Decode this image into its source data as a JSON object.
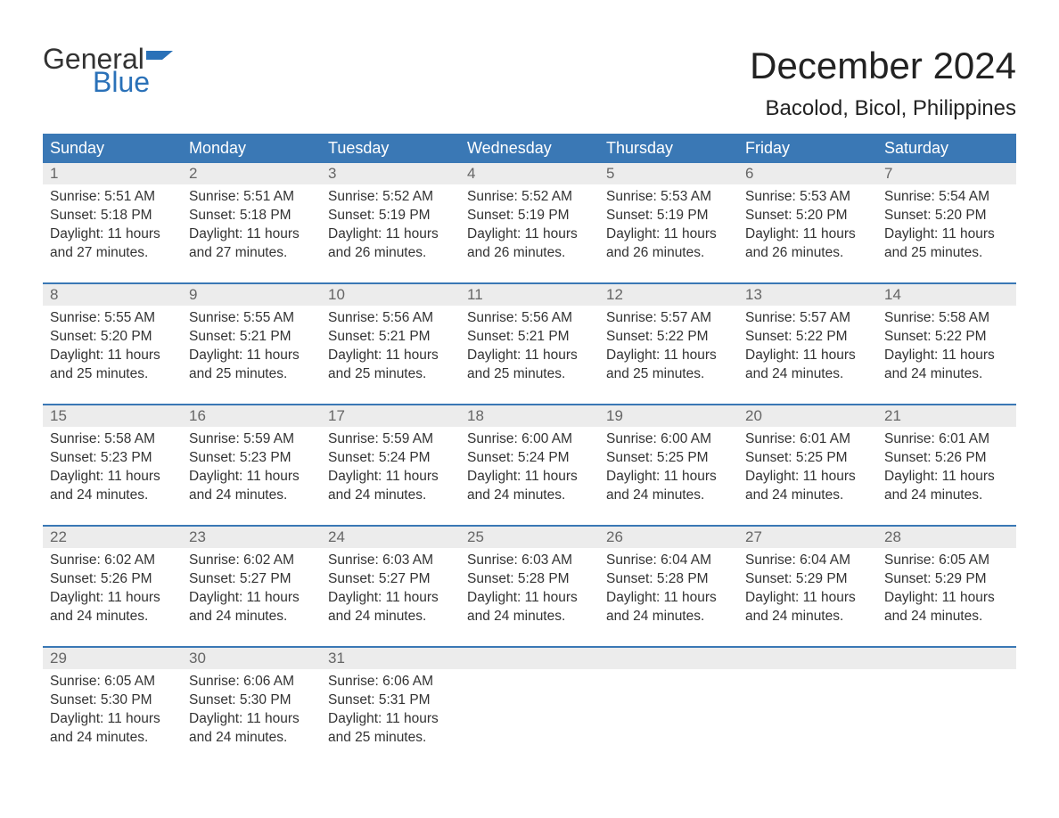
{
  "logo": {
    "text1": "General",
    "text2": "Blue"
  },
  "title": "December 2024",
  "location": "Bacolod, Bicol, Philippines",
  "colors": {
    "header_bg": "#3a78b5",
    "header_text": "#ffffff",
    "daynum_bg": "#ececec",
    "daynum_text": "#666666",
    "body_text": "#333333",
    "accent": "#2a71b8"
  },
  "dayNames": [
    "Sunday",
    "Monday",
    "Tuesday",
    "Wednesday",
    "Thursday",
    "Friday",
    "Saturday"
  ],
  "weeks": [
    [
      {
        "n": "1",
        "sr": "Sunrise: 5:51 AM",
        "ss": "Sunset: 5:18 PM",
        "d1": "Daylight: 11 hours",
        "d2": "and 27 minutes."
      },
      {
        "n": "2",
        "sr": "Sunrise: 5:51 AM",
        "ss": "Sunset: 5:18 PM",
        "d1": "Daylight: 11 hours",
        "d2": "and 27 minutes."
      },
      {
        "n": "3",
        "sr": "Sunrise: 5:52 AM",
        "ss": "Sunset: 5:19 PM",
        "d1": "Daylight: 11 hours",
        "d2": "and 26 minutes."
      },
      {
        "n": "4",
        "sr": "Sunrise: 5:52 AM",
        "ss": "Sunset: 5:19 PM",
        "d1": "Daylight: 11 hours",
        "d2": "and 26 minutes."
      },
      {
        "n": "5",
        "sr": "Sunrise: 5:53 AM",
        "ss": "Sunset: 5:19 PM",
        "d1": "Daylight: 11 hours",
        "d2": "and 26 minutes."
      },
      {
        "n": "6",
        "sr": "Sunrise: 5:53 AM",
        "ss": "Sunset: 5:20 PM",
        "d1": "Daylight: 11 hours",
        "d2": "and 26 minutes."
      },
      {
        "n": "7",
        "sr": "Sunrise: 5:54 AM",
        "ss": "Sunset: 5:20 PM",
        "d1": "Daylight: 11 hours",
        "d2": "and 25 minutes."
      }
    ],
    [
      {
        "n": "8",
        "sr": "Sunrise: 5:55 AM",
        "ss": "Sunset: 5:20 PM",
        "d1": "Daylight: 11 hours",
        "d2": "and 25 minutes."
      },
      {
        "n": "9",
        "sr": "Sunrise: 5:55 AM",
        "ss": "Sunset: 5:21 PM",
        "d1": "Daylight: 11 hours",
        "d2": "and 25 minutes."
      },
      {
        "n": "10",
        "sr": "Sunrise: 5:56 AM",
        "ss": "Sunset: 5:21 PM",
        "d1": "Daylight: 11 hours",
        "d2": "and 25 minutes."
      },
      {
        "n": "11",
        "sr": "Sunrise: 5:56 AM",
        "ss": "Sunset: 5:21 PM",
        "d1": "Daylight: 11 hours",
        "d2": "and 25 minutes."
      },
      {
        "n": "12",
        "sr": "Sunrise: 5:57 AM",
        "ss": "Sunset: 5:22 PM",
        "d1": "Daylight: 11 hours",
        "d2": "and 25 minutes."
      },
      {
        "n": "13",
        "sr": "Sunrise: 5:57 AM",
        "ss": "Sunset: 5:22 PM",
        "d1": "Daylight: 11 hours",
        "d2": "and 24 minutes."
      },
      {
        "n": "14",
        "sr": "Sunrise: 5:58 AM",
        "ss": "Sunset: 5:22 PM",
        "d1": "Daylight: 11 hours",
        "d2": "and 24 minutes."
      }
    ],
    [
      {
        "n": "15",
        "sr": "Sunrise: 5:58 AM",
        "ss": "Sunset: 5:23 PM",
        "d1": "Daylight: 11 hours",
        "d2": "and 24 minutes."
      },
      {
        "n": "16",
        "sr": "Sunrise: 5:59 AM",
        "ss": "Sunset: 5:23 PM",
        "d1": "Daylight: 11 hours",
        "d2": "and 24 minutes."
      },
      {
        "n": "17",
        "sr": "Sunrise: 5:59 AM",
        "ss": "Sunset: 5:24 PM",
        "d1": "Daylight: 11 hours",
        "d2": "and 24 minutes."
      },
      {
        "n": "18",
        "sr": "Sunrise: 6:00 AM",
        "ss": "Sunset: 5:24 PM",
        "d1": "Daylight: 11 hours",
        "d2": "and 24 minutes."
      },
      {
        "n": "19",
        "sr": "Sunrise: 6:00 AM",
        "ss": "Sunset: 5:25 PM",
        "d1": "Daylight: 11 hours",
        "d2": "and 24 minutes."
      },
      {
        "n": "20",
        "sr": "Sunrise: 6:01 AM",
        "ss": "Sunset: 5:25 PM",
        "d1": "Daylight: 11 hours",
        "d2": "and 24 minutes."
      },
      {
        "n": "21",
        "sr": "Sunrise: 6:01 AM",
        "ss": "Sunset: 5:26 PM",
        "d1": "Daylight: 11 hours",
        "d2": "and 24 minutes."
      }
    ],
    [
      {
        "n": "22",
        "sr": "Sunrise: 6:02 AM",
        "ss": "Sunset: 5:26 PM",
        "d1": "Daylight: 11 hours",
        "d2": "and 24 minutes."
      },
      {
        "n": "23",
        "sr": "Sunrise: 6:02 AM",
        "ss": "Sunset: 5:27 PM",
        "d1": "Daylight: 11 hours",
        "d2": "and 24 minutes."
      },
      {
        "n": "24",
        "sr": "Sunrise: 6:03 AM",
        "ss": "Sunset: 5:27 PM",
        "d1": "Daylight: 11 hours",
        "d2": "and 24 minutes."
      },
      {
        "n": "25",
        "sr": "Sunrise: 6:03 AM",
        "ss": "Sunset: 5:28 PM",
        "d1": "Daylight: 11 hours",
        "d2": "and 24 minutes."
      },
      {
        "n": "26",
        "sr": "Sunrise: 6:04 AM",
        "ss": "Sunset: 5:28 PM",
        "d1": "Daylight: 11 hours",
        "d2": "and 24 minutes."
      },
      {
        "n": "27",
        "sr": "Sunrise: 6:04 AM",
        "ss": "Sunset: 5:29 PM",
        "d1": "Daylight: 11 hours",
        "d2": "and 24 minutes."
      },
      {
        "n": "28",
        "sr": "Sunrise: 6:05 AM",
        "ss": "Sunset: 5:29 PM",
        "d1": "Daylight: 11 hours",
        "d2": "and 24 minutes."
      }
    ],
    [
      {
        "n": "29",
        "sr": "Sunrise: 6:05 AM",
        "ss": "Sunset: 5:30 PM",
        "d1": "Daylight: 11 hours",
        "d2": "and 24 minutes."
      },
      {
        "n": "30",
        "sr": "Sunrise: 6:06 AM",
        "ss": "Sunset: 5:30 PM",
        "d1": "Daylight: 11 hours",
        "d2": "and 24 minutes."
      },
      {
        "n": "31",
        "sr": "Sunrise: 6:06 AM",
        "ss": "Sunset: 5:31 PM",
        "d1": "Daylight: 11 hours",
        "d2": "and 25 minutes."
      },
      {
        "empty": true
      },
      {
        "empty": true
      },
      {
        "empty": true
      },
      {
        "empty": true
      }
    ]
  ]
}
